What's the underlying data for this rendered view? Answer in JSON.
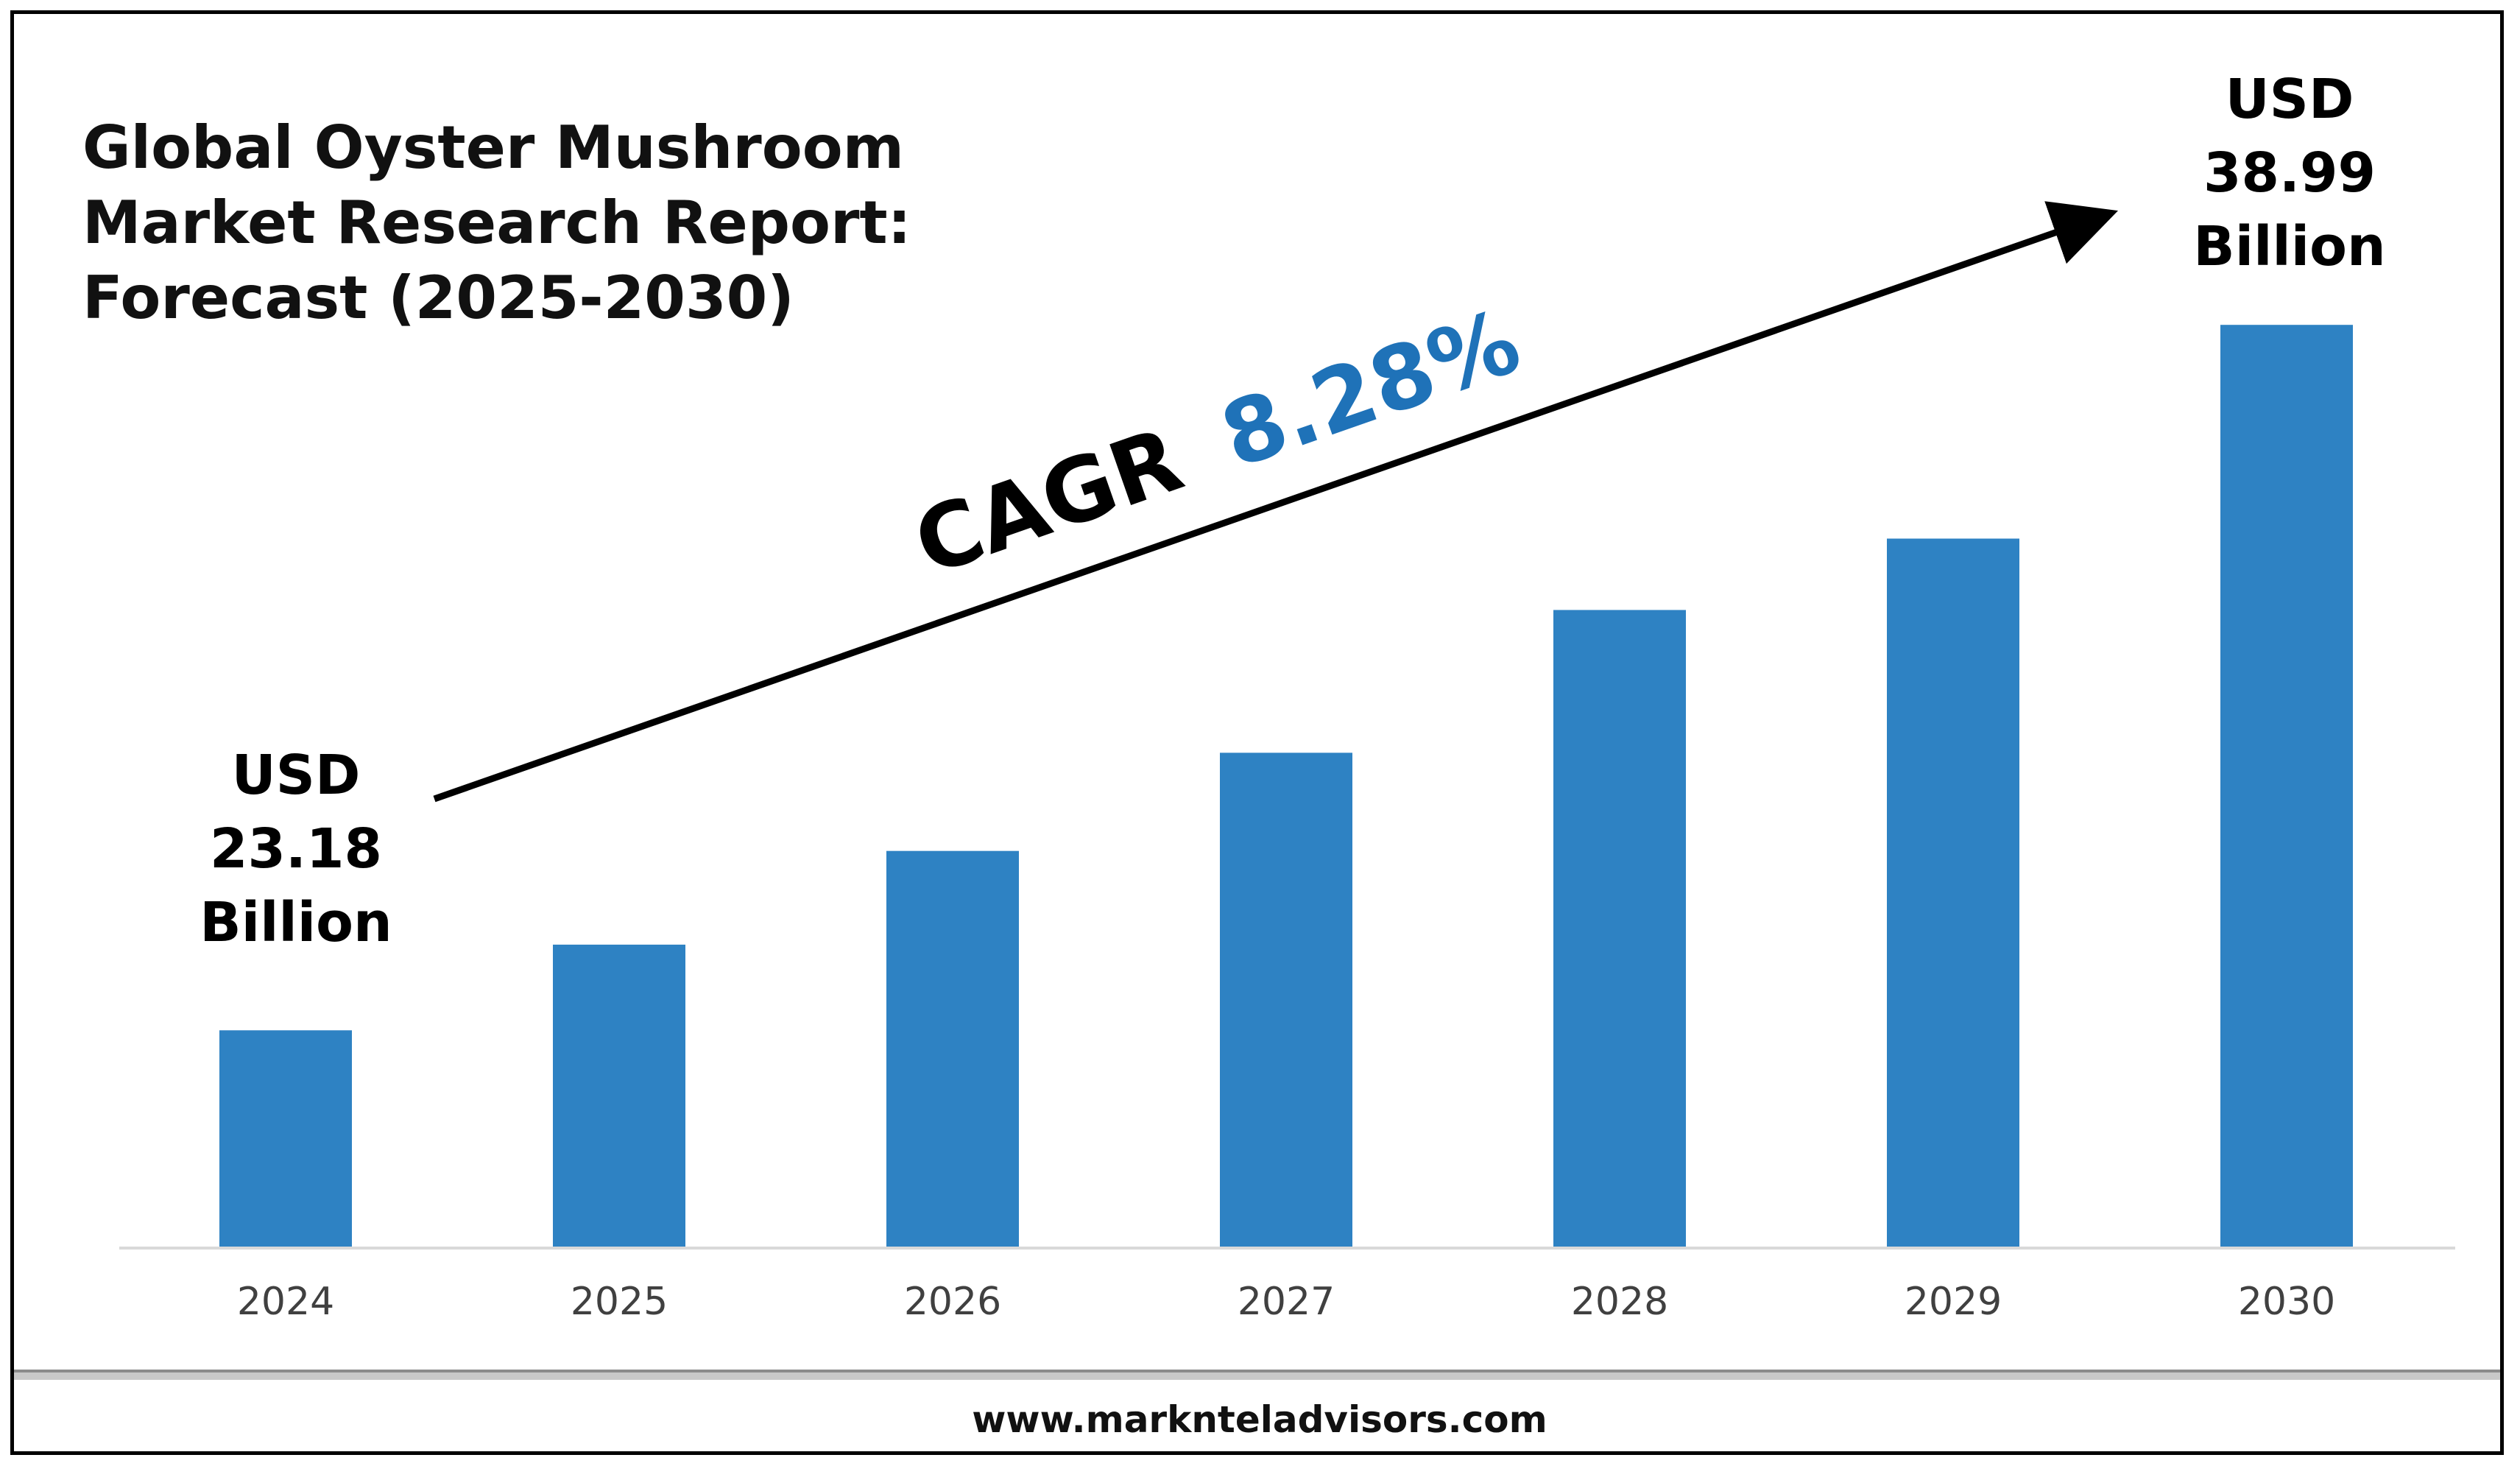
{
  "title": {
    "line1": "Global Oyster Mushroom",
    "line2": "Market Research Report:",
    "line3": "Forecast (2025-2030)"
  },
  "cagr": {
    "label": "CAGR",
    "value": "8.28%"
  },
  "callouts": {
    "start": {
      "line1": "USD",
      "line2": "23.18",
      "line3": "Billion"
    },
    "end": {
      "line1": "USD",
      "line2": "38.99",
      "line3": "Billion"
    }
  },
  "footer": {
    "url": "www.marknteladvisors.com"
  },
  "colors": {
    "bar": "#2e82c3",
    "cagr_value": "#1f72b8",
    "axis": "#d9d9d9",
    "frame": "#000000"
  },
  "chart_data": {
    "type": "bar",
    "title": "Global Oyster Mushroom Market Research Report: Forecast (2025-2030)",
    "categories": [
      "2024",
      "2025",
      "2026",
      "2027",
      "2028",
      "2029",
      "2030"
    ],
    "values": [
      23.18,
      25.1,
      27.2,
      29.4,
      32.6,
      34.2,
      38.99
    ],
    "unit": "USD Billion",
    "ylim": [
      18.3,
      40
    ],
    "grid": false,
    "legend": "none"
  }
}
